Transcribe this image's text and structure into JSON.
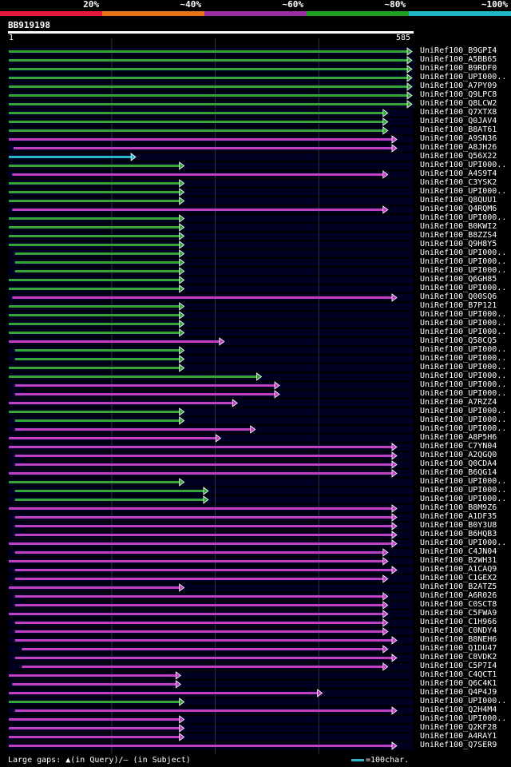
{
  "legend": {
    "labels": [
      "20%",
      "~40%",
      "~60%",
      "~80%",
      "~100%"
    ],
    "colors": [
      "#e41a3c",
      "#e8741a",
      "#9a2fa0",
      "#1f9e22",
      "#22b8c4"
    ]
  },
  "query": {
    "name": "BB919198",
    "start_label": "1",
    "end_label": "585",
    "length": 585
  },
  "colors": {
    "bar": {
      "green": "#33a633",
      "magenta": "#c040c0",
      "cyan": "#2bb5c2"
    },
    "background": "#000022",
    "grid": "#333333",
    "marker": "#ffff99"
  },
  "chart_data": {
    "type": "alignment",
    "xlim": [
      1,
      585
    ],
    "grid_x": [
      150,
      300,
      450
    ],
    "hits": [
      {
        "id": "UniRef100_B9GPI4",
        "start": 1,
        "end": 585,
        "color": "green"
      },
      {
        "id": "UniRef100_A5BB65",
        "start": 1,
        "end": 585,
        "color": "green"
      },
      {
        "id": "UniRef100_B9RDF0",
        "start": 1,
        "end": 585,
        "color": "green"
      },
      {
        "id": "UniRef100_UPI000..",
        "start": 1,
        "end": 585,
        "color": "green"
      },
      {
        "id": "UniRef100_A7PY09",
        "start": 1,
        "end": 585,
        "color": "green"
      },
      {
        "id": "UniRef100_Q9LPC8",
        "start": 1,
        "end": 585,
        "color": "green"
      },
      {
        "id": "UniRef100_Q8LCW2",
        "start": 1,
        "end": 585,
        "color": "green"
      },
      {
        "id": "UniRef100_Q7XTX8",
        "start": 1,
        "end": 550,
        "color": "green"
      },
      {
        "id": "UniRef100_Q0JAV4",
        "start": 1,
        "end": 550,
        "color": "green"
      },
      {
        "id": "UniRef100_B8AT61",
        "start": 1,
        "end": 550,
        "color": "green"
      },
      {
        "id": "UniRef100_A9SN36",
        "start": 1,
        "end": 563,
        "color": "magenta"
      },
      {
        "id": "UniRef100_A8JH26",
        "start": 8,
        "end": 563,
        "color": "magenta"
      },
      {
        "id": "UniRef100_Q56X22",
        "start": 1,
        "end": 185,
        "color": "cyan"
      },
      {
        "id": "UniRef100_UPI000..",
        "start": 1,
        "end": 255,
        "color": "green"
      },
      {
        "id": "UniRef100_A4S9T4",
        "start": 6,
        "end": 550,
        "color": "magenta"
      },
      {
        "id": "UniRef100_C3YSK2",
        "start": 1,
        "end": 255,
        "color": "green"
      },
      {
        "id": "UniRef100_UPI000..",
        "start": 1,
        "end": 255,
        "color": "green"
      },
      {
        "id": "UniRef100_Q8QUU1",
        "start": 1,
        "end": 255,
        "color": "green"
      },
      {
        "id": "UniRef100_Q4RQM6",
        "start": 6,
        "end": 550,
        "color": "magenta"
      },
      {
        "id": "UniRef100_UPI000..",
        "start": 1,
        "end": 255,
        "color": "green"
      },
      {
        "id": "UniRef100_B0KWI2",
        "start": 1,
        "end": 255,
        "color": "green"
      },
      {
        "id": "UniRef100_B8ZZS4",
        "start": 1,
        "end": 255,
        "color": "green"
      },
      {
        "id": "UniRef100_Q9H8Y5",
        "start": 1,
        "end": 255,
        "color": "green"
      },
      {
        "id": "UniRef100_UPI000..",
        "start": 10,
        "end": 255,
        "color": "green"
      },
      {
        "id": "UniRef100_UPI000..",
        "start": 10,
        "end": 255,
        "color": "green"
      },
      {
        "id": "UniRef100_UPI000..",
        "start": 10,
        "end": 255,
        "color": "green"
      },
      {
        "id": "UniRef100_Q6GH85",
        "start": 1,
        "end": 255,
        "color": "green"
      },
      {
        "id": "UniRef100_UPI000..",
        "start": 1,
        "end": 255,
        "color": "green"
      },
      {
        "id": "UniRef100_Q00SQ6",
        "start": 6,
        "end": 563,
        "color": "magenta"
      },
      {
        "id": "UniRef100_B7P121",
        "start": 1,
        "end": 255,
        "color": "green"
      },
      {
        "id": "UniRef100_UPI000..",
        "start": 1,
        "end": 255,
        "color": "green"
      },
      {
        "id": "UniRef100_UPI000..",
        "start": 1,
        "end": 255,
        "color": "green"
      },
      {
        "id": "UniRef100_UPI000..",
        "start": 1,
        "end": 255,
        "color": "green"
      },
      {
        "id": "UniRef100_Q58CQ5",
        "start": 1,
        "end": 313,
        "color": "magenta"
      },
      {
        "id": "UniRef100_UPI000..",
        "start": 10,
        "end": 255,
        "color": "green"
      },
      {
        "id": "UniRef100_UPI000..",
        "start": 10,
        "end": 255,
        "color": "green"
      },
      {
        "id": "UniRef100_UPI000..",
        "start": 1,
        "end": 255,
        "color": "green"
      },
      {
        "id": "UniRef100_UPI000..",
        "start": 1,
        "end": 367,
        "color": "green"
      },
      {
        "id": "UniRef100_UPI000..",
        "start": 10,
        "end": 393,
        "color": "magenta"
      },
      {
        "id": "UniRef100_UPI000..",
        "start": 10,
        "end": 393,
        "color": "magenta"
      },
      {
        "id": "UniRef100_A7RZZ4",
        "start": 1,
        "end": 332,
        "color": "magenta"
      },
      {
        "id": "UniRef100_UPI000..",
        "start": 1,
        "end": 255,
        "color": "green"
      },
      {
        "id": "UniRef100_UPI000..",
        "start": 10,
        "end": 255,
        "color": "green"
      },
      {
        "id": "UniRef100_UPI000..",
        "start": 10,
        "end": 358,
        "color": "magenta"
      },
      {
        "id": "UniRef100_A8P5H6",
        "start": 1,
        "end": 308,
        "color": "magenta"
      },
      {
        "id": "UniRef100_C7YN04",
        "start": 1,
        "end": 563,
        "color": "magenta"
      },
      {
        "id": "UniRef100_A2QGQ0",
        "start": 10,
        "end": 563,
        "color": "magenta"
      },
      {
        "id": "UniRef100_Q0CDA4",
        "start": 10,
        "end": 563,
        "color": "magenta"
      },
      {
        "id": "UniRef100_B6QG14",
        "start": 1,
        "end": 563,
        "color": "magenta"
      },
      {
        "id": "UniRef100_UPI000..",
        "start": 1,
        "end": 255,
        "color": "green"
      },
      {
        "id": "UniRef100_UPI000..",
        "start": 10,
        "end": 290,
        "color": "green"
      },
      {
        "id": "UniRef100_UPI000..",
        "start": 10,
        "end": 290,
        "color": "green"
      },
      {
        "id": "UniRef100_B8M9Z6",
        "start": 1,
        "end": 563,
        "color": "magenta"
      },
      {
        "id": "UniRef100_A1DF35",
        "start": 10,
        "end": 563,
        "color": "magenta"
      },
      {
        "id": "UniRef100_B0Y3U8",
        "start": 10,
        "end": 563,
        "color": "magenta"
      },
      {
        "id": "UniRef100_B6HQB3",
        "start": 10,
        "end": 563,
        "color": "magenta"
      },
      {
        "id": "UniRef100_UPI000..",
        "start": 1,
        "end": 563,
        "color": "magenta"
      },
      {
        "id": "UniRef100_C4JN04",
        "start": 10,
        "end": 550,
        "color": "magenta"
      },
      {
        "id": "UniRef100_B2WH31",
        "start": 1,
        "end": 550,
        "color": "magenta"
      },
      {
        "id": "UniRef100_A1CAQ9",
        "start": 10,
        "end": 563,
        "color": "magenta"
      },
      {
        "id": "UniRef100_C1GEX2",
        "start": 10,
        "end": 550,
        "color": "magenta"
      },
      {
        "id": "UniRef100_B2ATZ5",
        "start": 1,
        "end": 255,
        "color": "magenta"
      },
      {
        "id": "UniRef100_A6R026",
        "start": 10,
        "end": 550,
        "color": "magenta"
      },
      {
        "id": "UniRef100_C0SCT8",
        "start": 10,
        "end": 550,
        "color": "magenta"
      },
      {
        "id": "UniRef100_C5FWA9",
        "start": 1,
        "end": 550,
        "color": "magenta"
      },
      {
        "id": "UniRef100_C1H966",
        "start": 10,
        "end": 550,
        "color": "magenta"
      },
      {
        "id": "UniRef100_C0NDY4",
        "start": 10,
        "end": 550,
        "color": "magenta"
      },
      {
        "id": "UniRef100_B8NEH6",
        "start": 10,
        "end": 563,
        "color": "magenta"
      },
      {
        "id": "UniRef100_Q1DU47",
        "start": 20,
        "end": 550,
        "color": "magenta"
      },
      {
        "id": "UniRef100_C8VDK2",
        "start": 10,
        "end": 563,
        "color": "magenta"
      },
      {
        "id": "UniRef100_C5P7I4",
        "start": 20,
        "end": 550,
        "color": "magenta"
      },
      {
        "id": "UniRef100_C4QCT1",
        "start": 1,
        "end": 250,
        "color": "magenta"
      },
      {
        "id": "UniRef100_Q6C4K1",
        "start": 6,
        "end": 250,
        "color": "magenta"
      },
      {
        "id": "UniRef100_Q4P4J9",
        "start": 1,
        "end": 455,
        "color": "magenta"
      },
      {
        "id": "UniRef100_UPI000..",
        "start": 1,
        "end": 255,
        "color": "green"
      },
      {
        "id": "UniRef100_Q2H4M4",
        "start": 10,
        "end": 563,
        "color": "magenta"
      },
      {
        "id": "UniRef100_UPI000..",
        "start": 1,
        "end": 255,
        "color": "magenta"
      },
      {
        "id": "UniRef100_Q2KF28",
        "start": 1,
        "end": 255,
        "color": "magenta"
      },
      {
        "id": "UniRef100_A4RAY1",
        "start": 1,
        "end": 255,
        "color": "magenta"
      },
      {
        "id": "UniRef100_Q7SER9",
        "start": 1,
        "end": 563,
        "color": "magenta"
      }
    ]
  },
  "footer": {
    "text": "Large gaps: ▲(in Query)/– (in Subject)",
    "scale_text": "=100char."
  }
}
